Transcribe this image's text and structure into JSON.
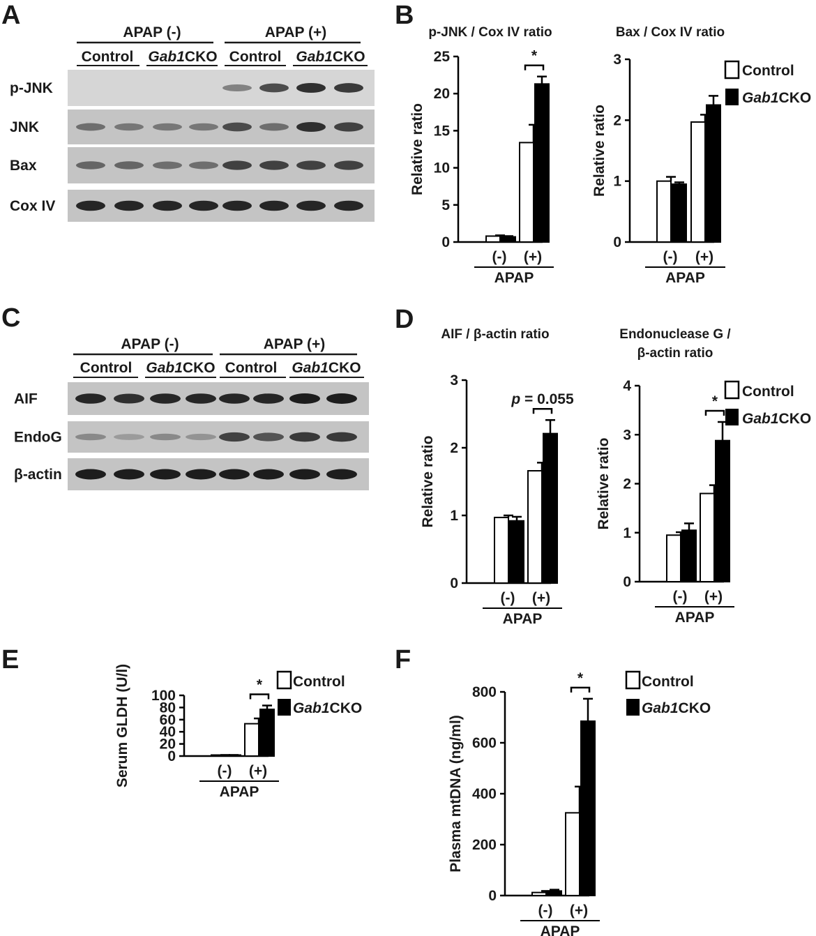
{
  "panels": {
    "A": "A",
    "B": "B",
    "C": "C",
    "D": "D",
    "E": "E",
    "F": "F"
  },
  "blot_A": {
    "header_left": "APAP (-)",
    "header_right": "APAP (+)",
    "groups": [
      "Control",
      "Gab1CKO",
      "Control",
      "Gab1CKO"
    ],
    "rows": [
      {
        "label": "p-JNK",
        "intensity": [
          0,
          0,
          0,
          0,
          0.45,
          0.75,
          0.9,
          0.85
        ]
      },
      {
        "label": "JNK",
        "intensity": [
          0.55,
          0.5,
          0.5,
          0.5,
          0.75,
          0.55,
          0.9,
          0.8
        ]
      },
      {
        "label": "Bax",
        "intensity": [
          0.6,
          0.6,
          0.55,
          0.55,
          0.8,
          0.8,
          0.8,
          0.8
        ]
      },
      {
        "label": "Cox IV",
        "intensity": [
          0.95,
          0.95,
          0.95,
          0.95,
          0.95,
          0.95,
          0.95,
          0.95
        ]
      }
    ]
  },
  "blot_C": {
    "header_left": "APAP (-)",
    "header_right": "APAP (+)",
    "groups": [
      "Control",
      "Gab1CKO",
      "Control",
      "Gab1CKO"
    ],
    "rows": [
      {
        "label": "AIF",
        "intensity": [
          0.95,
          0.9,
          0.95,
          0.95,
          0.95,
          0.95,
          1,
          1
        ]
      },
      {
        "label": "EndoG",
        "intensity": [
          0.4,
          0.3,
          0.4,
          0.35,
          0.8,
          0.7,
          0.85,
          0.85
        ]
      },
      {
        "label": "β-actin",
        "intensity": [
          1,
          1,
          1,
          1,
          1,
          1,
          1,
          1
        ]
      }
    ]
  },
  "legend": {
    "control": "Control",
    "gab1": "Gab1",
    "cko": "CKO"
  },
  "chart_data": [
    {
      "id": "B1",
      "type": "bar",
      "title": "p-JNK / Cox IV ratio",
      "ylabel": "Relative ratio",
      "ylim": [
        0,
        25
      ],
      "yticks": [
        0,
        5,
        10,
        15,
        20,
        25
      ],
      "categories": [
        "(-)",
        "(+)"
      ],
      "group_label": "APAP",
      "series": [
        {
          "name": "Control",
          "values": [
            0.8,
            13.4
          ],
          "errors": [
            0.1,
            2.4
          ]
        },
        {
          "name": "Gab1CKO",
          "values": [
            0.7,
            21.3
          ],
          "errors": [
            0.1,
            1.0
          ]
        }
      ],
      "annotation": {
        "text": "*",
        "category": 1
      }
    },
    {
      "id": "B2",
      "type": "bar",
      "title": "Bax / Cox IV ratio",
      "ylabel": "Relative ratio",
      "ylim": [
        0,
        3
      ],
      "yticks": [
        0,
        1,
        2,
        3
      ],
      "categories": [
        "(-)",
        "(+)"
      ],
      "group_label": "APAP",
      "series": [
        {
          "name": "Control",
          "values": [
            1.0,
            1.97
          ],
          "errors": [
            0.07,
            0.12
          ]
        },
        {
          "name": "Gab1CKO",
          "values": [
            0.95,
            2.25
          ],
          "errors": [
            0.03,
            0.15
          ]
        }
      ],
      "annotation": null
    },
    {
      "id": "D1",
      "type": "bar",
      "title": "AIF / β-actin ratio",
      "ylabel": "Relative ratio",
      "ylim": [
        0,
        3
      ],
      "yticks": [
        0,
        1,
        2,
        3
      ],
      "categories": [
        "(-)",
        "(+)"
      ],
      "group_label": "APAP",
      "series": [
        {
          "name": "Control",
          "values": [
            0.97,
            1.66
          ],
          "errors": [
            0.03,
            0.12
          ]
        },
        {
          "name": "Gab1CKO",
          "values": [
            0.92,
            2.21
          ],
          "errors": [
            0.06,
            0.2
          ]
        }
      ],
      "annotation": {
        "text": "p = 0.055",
        "category": 1
      }
    },
    {
      "id": "D2",
      "type": "bar",
      "title": "Endonuclease G /",
      "title2": "β-actin ratio",
      "ylabel": "Relative ratio",
      "ylim": [
        0,
        4
      ],
      "yticks": [
        0,
        1,
        2,
        3,
        4
      ],
      "categories": [
        "(-)",
        "(+)"
      ],
      "group_label": "APAP",
      "series": [
        {
          "name": "Control",
          "values": [
            0.95,
            1.8
          ],
          "errors": [
            0.06,
            0.17
          ]
        },
        {
          "name": "Gab1CKO",
          "values": [
            1.05,
            2.88
          ],
          "errors": [
            0.14,
            0.38
          ]
        }
      ],
      "annotation": {
        "text": "*",
        "category": 1
      }
    },
    {
      "id": "E",
      "type": "bar",
      "title": "",
      "ylabel": "Serum GLDH (U/l)",
      "ylim": [
        0,
        100
      ],
      "yticks": [
        0,
        20,
        40,
        60,
        80,
        100
      ],
      "categories": [
        "(-)",
        "(+)"
      ],
      "group_label": "APAP",
      "series": [
        {
          "name": "Control",
          "values": [
            1.0,
            53.3
          ],
          "errors": [
            0.1,
            8.7
          ]
        },
        {
          "name": "Gab1CKO",
          "values": [
            1.0,
            77.0
          ],
          "errors": [
            0.1,
            6.3
          ]
        }
      ],
      "annotation": {
        "text": "*",
        "category": 1
      }
    },
    {
      "id": "F",
      "type": "bar",
      "title": "",
      "ylabel": "Plasma mtDNA (ng/ml)",
      "ylim": [
        0,
        800
      ],
      "yticks": [
        0,
        200,
        400,
        600,
        800
      ],
      "categories": [
        "(-)",
        "(+)"
      ],
      "group_label": "APAP",
      "series": [
        {
          "name": "Control",
          "values": [
            12,
            325
          ],
          "errors": [
            6,
            103
          ]
        },
        {
          "name": "Gab1CKO",
          "values": [
            18,
            685
          ],
          "errors": [
            5,
            88
          ]
        }
      ],
      "annotation": {
        "text": "*",
        "category": 1
      }
    }
  ]
}
